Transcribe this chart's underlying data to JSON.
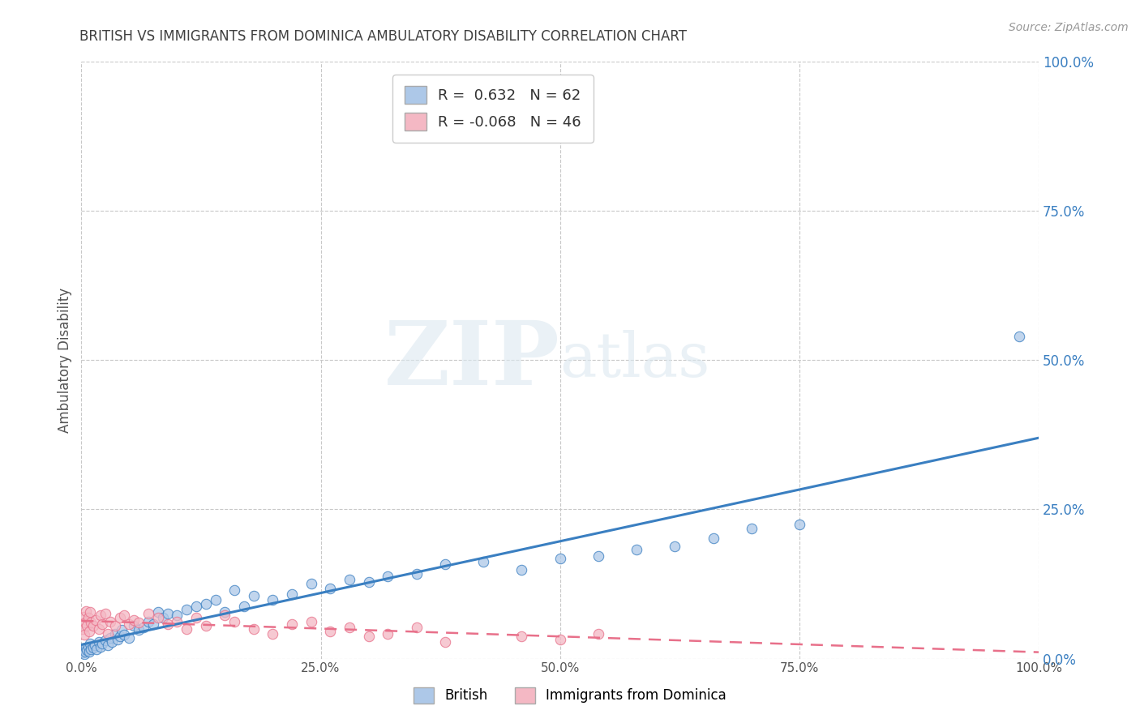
{
  "title": "BRITISH VS IMMIGRANTS FROM DOMINICA AMBULATORY DISABILITY CORRELATION CHART",
  "source": "Source: ZipAtlas.com",
  "ylabel": "Ambulatory Disability",
  "watermark_zip": "ZIP",
  "watermark_atlas": "atlas",
  "legend_label1": "British",
  "legend_label2": "Immigrants from Dominica",
  "R1": 0.632,
  "N1": 62,
  "R2": -0.068,
  "N2": 46,
  "color_british": "#adc8e8",
  "color_dominica": "#f4b8c4",
  "color_line1": "#3a7fc1",
  "color_line2": "#e8708a",
  "background": "#ffffff",
  "grid_color": "#c8c8c8",
  "title_color": "#404040",
  "british_x": [
    0.001,
    0.002,
    0.003,
    0.004,
    0.005,
    0.006,
    0.007,
    0.008,
    0.009,
    0.01,
    0.012,
    0.014,
    0.016,
    0.018,
    0.02,
    0.022,
    0.025,
    0.028,
    0.03,
    0.032,
    0.035,
    0.038,
    0.04,
    0.042,
    0.045,
    0.05,
    0.055,
    0.06,
    0.065,
    0.07,
    0.075,
    0.08,
    0.085,
    0.09,
    0.1,
    0.11,
    0.12,
    0.13,
    0.14,
    0.15,
    0.16,
    0.17,
    0.18,
    0.2,
    0.22,
    0.24,
    0.26,
    0.28,
    0.3,
    0.32,
    0.35,
    0.38,
    0.42,
    0.46,
    0.5,
    0.54,
    0.58,
    0.62,
    0.66,
    0.7,
    0.75,
    0.98
  ],
  "british_y": [
    0.01,
    0.015,
    0.008,
    0.012,
    0.018,
    0.014,
    0.02,
    0.012,
    0.025,
    0.015,
    0.018,
    0.022,
    0.016,
    0.028,
    0.02,
    0.025,
    0.03,
    0.022,
    0.035,
    0.028,
    0.042,
    0.032,
    0.038,
    0.048,
    0.04,
    0.035,
    0.055,
    0.048,
    0.052,
    0.062,
    0.058,
    0.078,
    0.068,
    0.075,
    0.072,
    0.082,
    0.088,
    0.092,
    0.098,
    0.078,
    0.115,
    0.088,
    0.105,
    0.098,
    0.108,
    0.125,
    0.118,
    0.132,
    0.128,
    0.138,
    0.142,
    0.158,
    0.162,
    0.148,
    0.168,
    0.172,
    0.182,
    0.188,
    0.202,
    0.218,
    0.225,
    0.54
  ],
  "dominica_x": [
    0.001,
    0.002,
    0.003,
    0.004,
    0.005,
    0.006,
    0.007,
    0.008,
    0.009,
    0.01,
    0.012,
    0.015,
    0.018,
    0.02,
    0.022,
    0.025,
    0.028,
    0.03,
    0.035,
    0.04,
    0.045,
    0.05,
    0.055,
    0.06,
    0.07,
    0.08,
    0.09,
    0.1,
    0.11,
    0.12,
    0.13,
    0.15,
    0.16,
    0.18,
    0.2,
    0.22,
    0.24,
    0.26,
    0.28,
    0.3,
    0.32,
    0.35,
    0.38,
    0.46,
    0.5,
    0.54
  ],
  "dominica_y": [
    0.05,
    0.07,
    0.04,
    0.06,
    0.08,
    0.055,
    0.068,
    0.045,
    0.078,
    0.06,
    0.055,
    0.065,
    0.05,
    0.072,
    0.058,
    0.075,
    0.042,
    0.062,
    0.055,
    0.068,
    0.072,
    0.058,
    0.065,
    0.06,
    0.075,
    0.068,
    0.058,
    0.062,
    0.05,
    0.068,
    0.055,
    0.072,
    0.062,
    0.05,
    0.042,
    0.058,
    0.062,
    0.045,
    0.052,
    0.038,
    0.042,
    0.052,
    0.028,
    0.038,
    0.032,
    0.042
  ],
  "xlim": [
    0.0,
    1.0
  ],
  "ylim": [
    0.0,
    1.0
  ],
  "xtick_vals": [
    0.0,
    0.25,
    0.5,
    0.75,
    1.0
  ],
  "xtick_labels": [
    "0.0%",
    "25.0%",
    "50.0%",
    "75.0%",
    "100.0%"
  ],
  "right_ytick_vals": [
    0.0,
    0.25,
    0.5,
    0.75,
    1.0
  ],
  "right_ytick_labels": [
    "0.0%",
    "25.0%",
    "50.0%",
    "75.0%",
    "100.0%"
  ]
}
